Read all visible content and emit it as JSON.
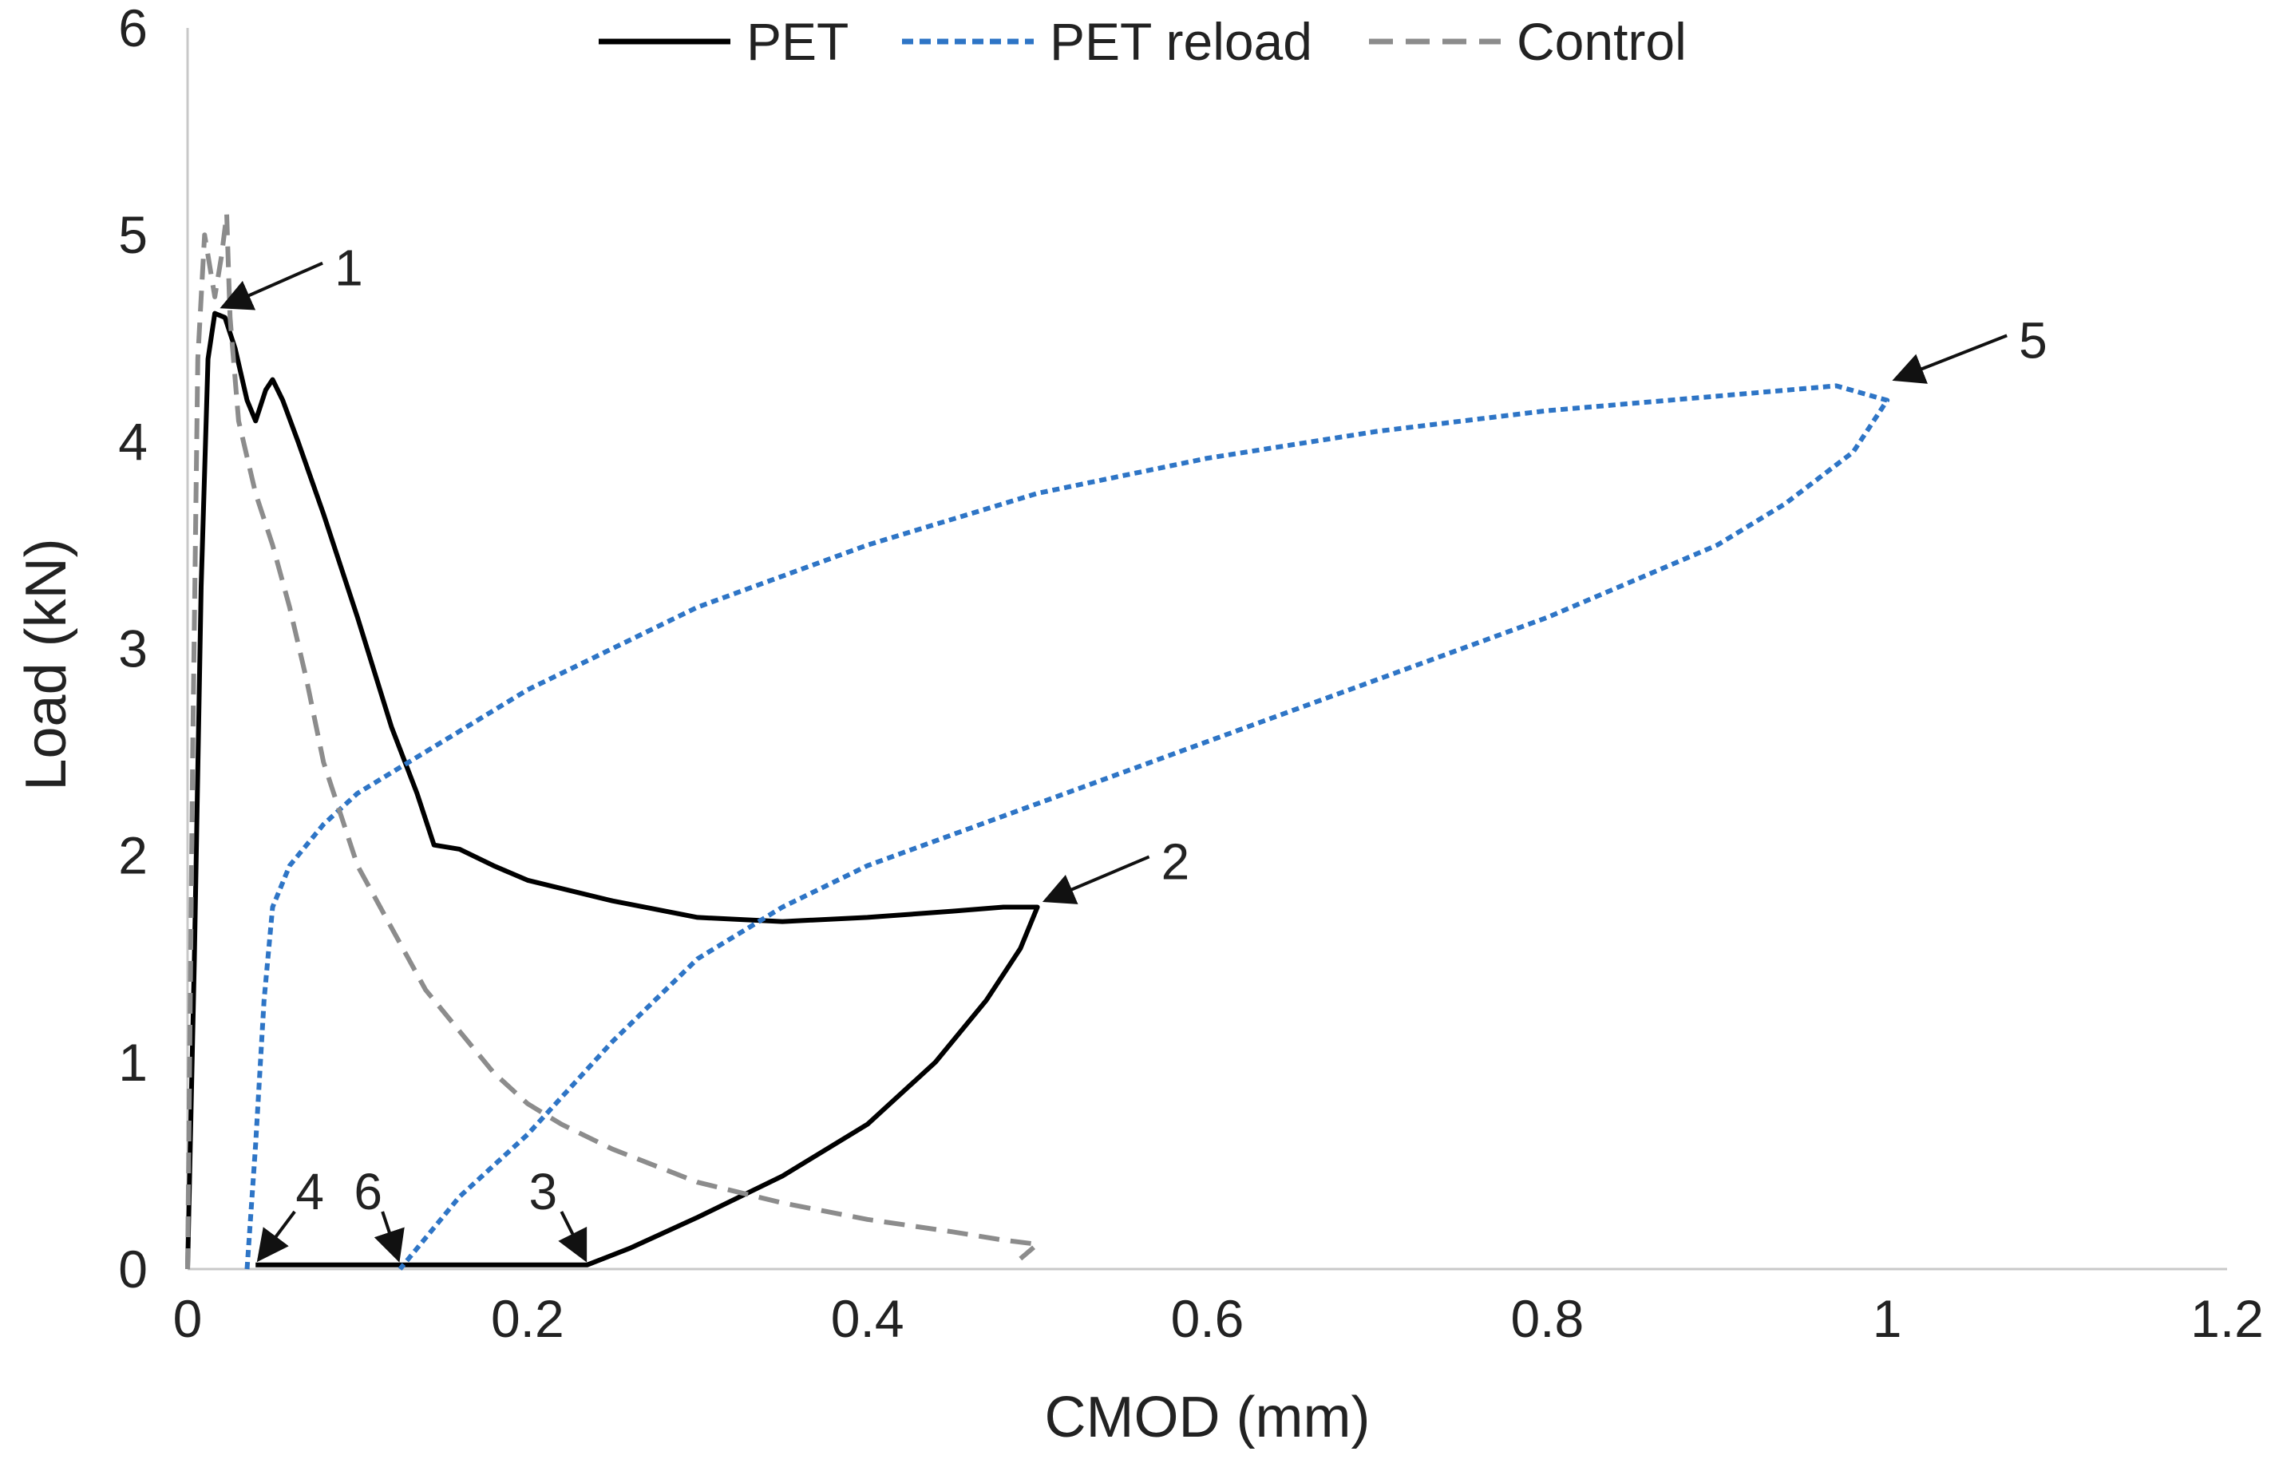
{
  "chart_data": {
    "type": "line",
    "title": "",
    "xlabel": "CMOD (mm)",
    "ylabel": "Load (kN)",
    "xlim": [
      0,
      1.2
    ],
    "ylim": [
      0,
      6
    ],
    "x_ticks": [
      "0",
      "0.2",
      "0.4",
      "0.6",
      "0.8",
      "1",
      "1.2"
    ],
    "y_ticks": [
      "0",
      "1",
      "2",
      "3",
      "4",
      "5",
      "6"
    ],
    "grid": false,
    "legend_position": "top",
    "series": [
      {
        "name": "PET",
        "color": "#000000",
        "style": "solid",
        "points": [
          [
            0.0,
            0.0
          ],
          [
            0.004,
            1.5
          ],
          [
            0.008,
            3.3
          ],
          [
            0.012,
            4.4
          ],
          [
            0.016,
            4.62
          ],
          [
            0.022,
            4.6
          ],
          [
            0.028,
            4.45
          ],
          [
            0.035,
            4.2
          ],
          [
            0.04,
            4.1
          ],
          [
            0.046,
            4.25
          ],
          [
            0.05,
            4.3
          ],
          [
            0.056,
            4.2
          ],
          [
            0.065,
            4.0
          ],
          [
            0.08,
            3.65
          ],
          [
            0.1,
            3.15
          ],
          [
            0.12,
            2.62
          ],
          [
            0.135,
            2.3
          ],
          [
            0.145,
            2.05
          ],
          [
            0.16,
            2.03
          ],
          [
            0.18,
            1.95
          ],
          [
            0.2,
            1.88
          ],
          [
            0.25,
            1.78
          ],
          [
            0.3,
            1.7
          ],
          [
            0.35,
            1.68
          ],
          [
            0.4,
            1.7
          ],
          [
            0.45,
            1.73
          ],
          [
            0.48,
            1.75
          ],
          [
            0.5,
            1.75
          ],
          [
            0.49,
            1.55
          ],
          [
            0.47,
            1.3
          ],
          [
            0.44,
            1.0
          ],
          [
            0.4,
            0.7
          ],
          [
            0.35,
            0.45
          ],
          [
            0.3,
            0.25
          ],
          [
            0.26,
            0.1
          ],
          [
            0.235,
            0.02
          ],
          [
            0.15,
            0.02
          ],
          [
            0.08,
            0.02
          ],
          [
            0.04,
            0.02
          ]
        ]
      },
      {
        "name": "PET reload",
        "color": "#2E75C6",
        "style": "dotted",
        "points": [
          [
            0.035,
            0.0
          ],
          [
            0.04,
            0.6
          ],
          [
            0.045,
            1.3
          ],
          [
            0.05,
            1.75
          ],
          [
            0.06,
            1.95
          ],
          [
            0.08,
            2.15
          ],
          [
            0.1,
            2.3
          ],
          [
            0.15,
            2.55
          ],
          [
            0.2,
            2.8
          ],
          [
            0.25,
            3.0
          ],
          [
            0.3,
            3.2
          ],
          [
            0.4,
            3.5
          ],
          [
            0.5,
            3.75
          ],
          [
            0.6,
            3.92
          ],
          [
            0.7,
            4.05
          ],
          [
            0.8,
            4.15
          ],
          [
            0.9,
            4.22
          ],
          [
            0.97,
            4.27
          ],
          [
            1.0,
            4.2
          ],
          [
            0.98,
            3.95
          ],
          [
            0.94,
            3.7
          ],
          [
            0.9,
            3.5
          ],
          [
            0.8,
            3.15
          ],
          [
            0.7,
            2.85
          ],
          [
            0.6,
            2.55
          ],
          [
            0.5,
            2.25
          ],
          [
            0.4,
            1.95
          ],
          [
            0.35,
            1.75
          ],
          [
            0.3,
            1.5
          ],
          [
            0.25,
            1.1
          ],
          [
            0.2,
            0.65
          ],
          [
            0.16,
            0.35
          ],
          [
            0.13,
            0.05
          ],
          [
            0.125,
            0.0
          ]
        ]
      },
      {
        "name": "Control",
        "color": "#8C8C8C",
        "style": "dashed",
        "points": [
          [
            0.0,
            0.0
          ],
          [
            0.003,
            2.5
          ],
          [
            0.006,
            4.4
          ],
          [
            0.01,
            5.0
          ],
          [
            0.013,
            4.85
          ],
          [
            0.016,
            4.7
          ],
          [
            0.02,
            4.9
          ],
          [
            0.023,
            5.1
          ],
          [
            0.025,
            4.6
          ],
          [
            0.03,
            4.1
          ],
          [
            0.04,
            3.75
          ],
          [
            0.05,
            3.5
          ],
          [
            0.06,
            3.2
          ],
          [
            0.07,
            2.85
          ],
          [
            0.08,
            2.45
          ],
          [
            0.09,
            2.2
          ],
          [
            0.1,
            1.95
          ],
          [
            0.12,
            1.65
          ],
          [
            0.14,
            1.35
          ],
          [
            0.16,
            1.15
          ],
          [
            0.18,
            0.95
          ],
          [
            0.2,
            0.8
          ],
          [
            0.22,
            0.7
          ],
          [
            0.25,
            0.58
          ],
          [
            0.3,
            0.42
          ],
          [
            0.35,
            0.32
          ],
          [
            0.4,
            0.24
          ],
          [
            0.45,
            0.18
          ],
          [
            0.48,
            0.14
          ],
          [
            0.5,
            0.12
          ],
          [
            0.49,
            0.05
          ]
        ]
      }
    ],
    "annotations": [
      {
        "label": "1",
        "x": 0.016,
        "y": 4.62
      },
      {
        "label": "2",
        "x": 0.5,
        "y": 1.75
      },
      {
        "label": "3",
        "x": 0.235,
        "y": 0.0
      },
      {
        "label": "4",
        "x": 0.04,
        "y": 0.0
      },
      {
        "label": "5",
        "x": 1.0,
        "y": 4.27
      },
      {
        "label": "6",
        "x": 0.125,
        "y": 0.0
      }
    ]
  }
}
